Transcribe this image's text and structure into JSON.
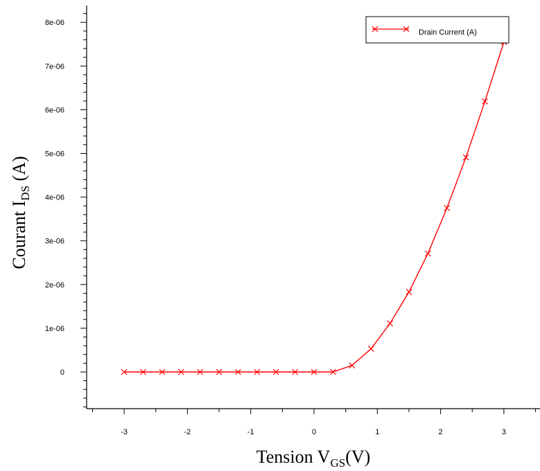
{
  "chart_data": {
    "type": "line",
    "title": "",
    "xlabel": {
      "main": "Tension V",
      "sub": "GS",
      "suffix": "(V)"
    },
    "ylabel": {
      "main": "Courant I",
      "sub": "DS",
      "suffix": " (A)"
    },
    "xlim": [
      -3.5,
      3.5
    ],
    "ylim": [
      -8e-07,
      8.3e-06
    ],
    "grid": false,
    "legend_position": "top-right",
    "x_ticks": [
      -3,
      -2,
      -1,
      0,
      1,
      2,
      3
    ],
    "x_tick_labels": [
      "-3",
      "-2",
      "-1",
      "0",
      "1",
      "2",
      "3"
    ],
    "y_ticks": [
      0,
      1e-06,
      2e-06,
      3e-06,
      4e-06,
      5e-06,
      6e-06,
      7e-06,
      8e-06
    ],
    "y_tick_labels": [
      "0",
      "1e-06",
      "2e-06",
      "3e-06",
      "4e-06",
      "5e-06",
      "6e-06",
      "7e-06",
      "8e-06"
    ],
    "colors": {
      "series": "#ff0000",
      "axis": "#000000"
    },
    "series": [
      {
        "name": "Drain Current (A)",
        "marker": "x",
        "x": [
          -3,
          -2.7,
          -2.4,
          -2.1,
          -1.8,
          -1.5,
          -1.2,
          -0.9,
          -0.6,
          -0.3,
          0,
          0.3,
          0.6,
          0.9,
          1.2,
          1.5,
          1.8,
          2.1,
          2.4,
          2.7,
          3.0
        ],
        "y": [
          0,
          0,
          0,
          0,
          0,
          0,
          0,
          0,
          0,
          0,
          0,
          0,
          1.5e-07,
          5.3e-07,
          1.11e-06,
          1.83e-06,
          2.71e-06,
          3.75e-06,
          4.91e-06,
          6.19e-06,
          7.55e-06
        ]
      }
    ]
  }
}
